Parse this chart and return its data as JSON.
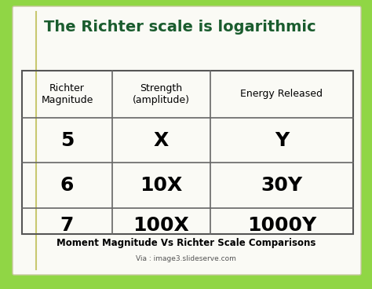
{
  "title": "The Richter scale is logarithmic",
  "title_color": "#1a5c2e",
  "background_color_top": "#b8e8a0",
  "background_color": "#90d645",
  "card_color": "#fafaf5",
  "table_headers": [
    "Richter\nMagnitude",
    "Strength\n(amplitude)",
    "Energy Released"
  ],
  "table_rows": [
    [
      "5",
      "X",
      "Y"
    ],
    [
      "6",
      "10X",
      "30Y"
    ],
    [
      "7",
      "100X",
      "1000Y"
    ]
  ],
  "footer_title": "Moment Magnitude Vs Richter Scale Comparisons",
  "footer_credit": "Via : image3.slideserve.com",
  "header_fontsize": 9,
  "data_fontsize": 18,
  "title_fontsize": 14
}
